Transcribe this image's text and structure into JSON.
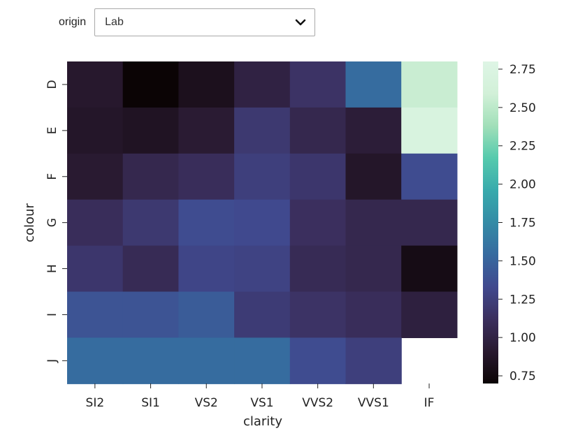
{
  "filter": {
    "label": "origin",
    "selected": "Lab",
    "icon": "chevron-down-icon"
  },
  "chart_data": {
    "type": "heatmap",
    "xlabel": "clarity",
    "ylabel": "colour",
    "x_categories": [
      "SI2",
      "SI1",
      "VS2",
      "VS1",
      "VVS2",
      "VVS1",
      "IF"
    ],
    "y_categories": [
      "D",
      "E",
      "F",
      "G",
      "H",
      "I",
      "J"
    ],
    "values": [
      [
        0.9,
        0.7,
        0.82,
        1.0,
        1.15,
        1.55,
        2.55
      ],
      [
        0.88,
        0.85,
        0.93,
        1.2,
        1.05,
        0.95,
        2.7
      ],
      [
        0.92,
        1.05,
        1.1,
        1.25,
        1.18,
        0.88,
        1.35
      ],
      [
        1.1,
        1.2,
        1.35,
        1.33,
        1.12,
        1.05,
        1.05
      ],
      [
        1.18,
        1.08,
        1.3,
        1.28,
        1.08,
        1.05,
        0.78
      ],
      [
        1.4,
        1.4,
        1.45,
        1.22,
        1.15,
        1.1,
        0.98
      ],
      [
        1.55,
        1.55,
        1.55,
        1.55,
        1.35,
        1.25,
        null
      ]
    ],
    "colorbar": {
      "ticks": [
        "0.75",
        "1.00",
        "1.25",
        "1.50",
        "1.75",
        "2.00",
        "2.25",
        "2.50",
        "2.75"
      ],
      "range": [
        0.7,
        2.8
      ],
      "colormap": "mako"
    },
    "grid": false,
    "legend": "colorbar-right"
  }
}
